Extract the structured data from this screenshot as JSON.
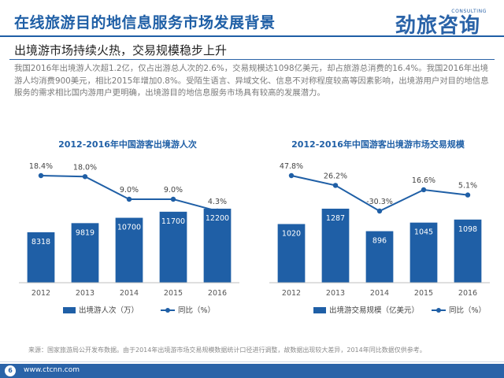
{
  "header": {
    "title": "在线旅游目的地信息服务市场发展背景",
    "logo_text": "劲旅咨询",
    "logo_sub": "CONSULTING",
    "subtitle": "出境游市场持续火热，交易规模稳步上升"
  },
  "body_text": "我国2016年出境游人次超1.2亿，仅占出游总人次的2.6%，交易规模达1098亿美元，却占旅游总消费的16.4%。我国2016年出境游人均消费900美元，相比2015年增加0.8%。受陌生语言、异域文化、信息不对称程度较高等因素影响，出境游用户对目的地信息服务的需求相比国内游用户更明确，出境游目的地信息服务市场具有较高的发展潜力。",
  "footer": {
    "source": "来源：国家旅游局公开发布数据。由于2014年出境游市场交易规模数据统计口径进行调整，故数据出现较大差异，2014年同比数据仅供参考。",
    "page_number": "6",
    "url": "www.ctcnn.com"
  },
  "colors": {
    "bar": "#1f5fa6",
    "line": "#1f5fa6",
    "title": "#1f5fa6"
  },
  "chart_data": [
    {
      "type": "bar",
      "title": "2012-2016年中国游客出境游人次",
      "categories": [
        "2012",
        "2013",
        "2014",
        "2015",
        "2016"
      ],
      "series": [
        {
          "name": "出境游人次（万）",
          "type": "bar",
          "values": [
            8318,
            9819,
            10700,
            11700,
            12200
          ]
        },
        {
          "name": "同比（%）",
          "type": "line",
          "values": [
            18.4,
            18.0,
            9.0,
            9.0,
            4.3
          ],
          "labels": [
            "18.4%",
            "18.0%",
            "9.0%",
            "9.0%",
            "4.3%"
          ]
        }
      ],
      "legend": "bottom"
    },
    {
      "type": "bar",
      "title": "2012-2016年中国游客出境游市场交易规模",
      "categories": [
        "2012",
        "2013",
        "2014",
        "2015",
        "2016"
      ],
      "series": [
        {
          "name": "出境游交易规模（亿美元）",
          "type": "bar",
          "values": [
            1020,
            1287,
            896,
            1045,
            1098
          ]
        },
        {
          "name": "同比（%）",
          "type": "line",
          "values": [
            47.8,
            26.2,
            -30.3,
            16.6,
            5.1
          ],
          "labels": [
            "47.8%",
            "26.2%",
            "-30.3%",
            "16.6%",
            "5.1%"
          ]
        }
      ],
      "legend": "bottom"
    }
  ]
}
